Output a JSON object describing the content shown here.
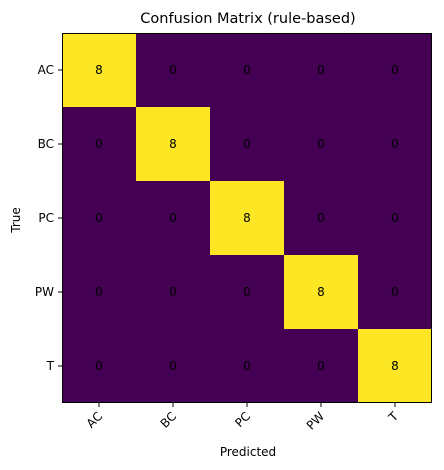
{
  "chart_data": {
    "type": "heatmap",
    "title": "Confusion Matrix (rule-based)",
    "xlabel": "Predicted",
    "ylabel": "True",
    "x_categories": [
      "AC",
      "BC",
      "PC",
      "PW",
      "T"
    ],
    "y_categories": [
      "AC",
      "BC",
      "PC",
      "PW",
      "T"
    ],
    "values": [
      [
        8,
        0,
        0,
        0,
        0
      ],
      [
        0,
        8,
        0,
        0,
        0
      ],
      [
        0,
        0,
        8,
        0,
        0
      ],
      [
        0,
        0,
        0,
        8,
        0
      ],
      [
        0,
        0,
        0,
        0,
        8
      ]
    ],
    "colormap": "viridis",
    "low_color": "#440154",
    "high_color": "#fde725",
    "grid": false
  }
}
